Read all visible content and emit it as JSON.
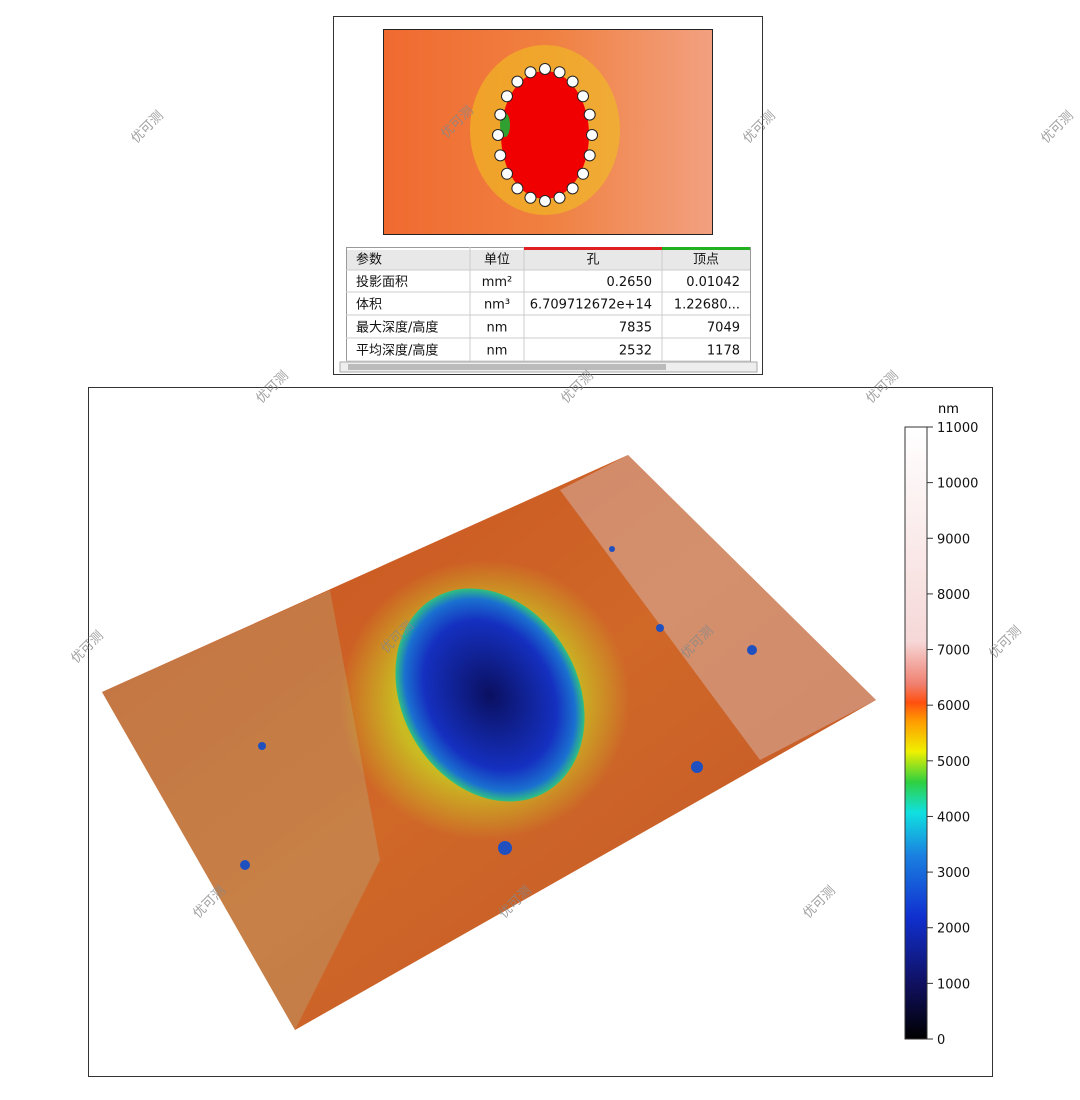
{
  "table": {
    "headers": [
      "参数",
      "单位",
      "孔",
      "顶点"
    ],
    "rows": [
      [
        "投影面积",
        "mm²",
        "0.2650",
        "0.01042"
      ],
      [
        "体积",
        "nm³",
        "6.709712672e+14",
        "1.22680..."
      ],
      [
        "最大深度/高度",
        "nm",
        "7835",
        "7049"
      ],
      [
        "平均深度/高度",
        "nm",
        "2532",
        "1178"
      ]
    ]
  },
  "colorbar": {
    "unit": "nm",
    "lim": [
      0,
      11000
    ],
    "ticks": [
      0,
      1000,
      2000,
      3000,
      4000,
      5000,
      6000,
      7000,
      8000,
      9000,
      10000,
      11000
    ]
  },
  "watermark": "优可测"
}
